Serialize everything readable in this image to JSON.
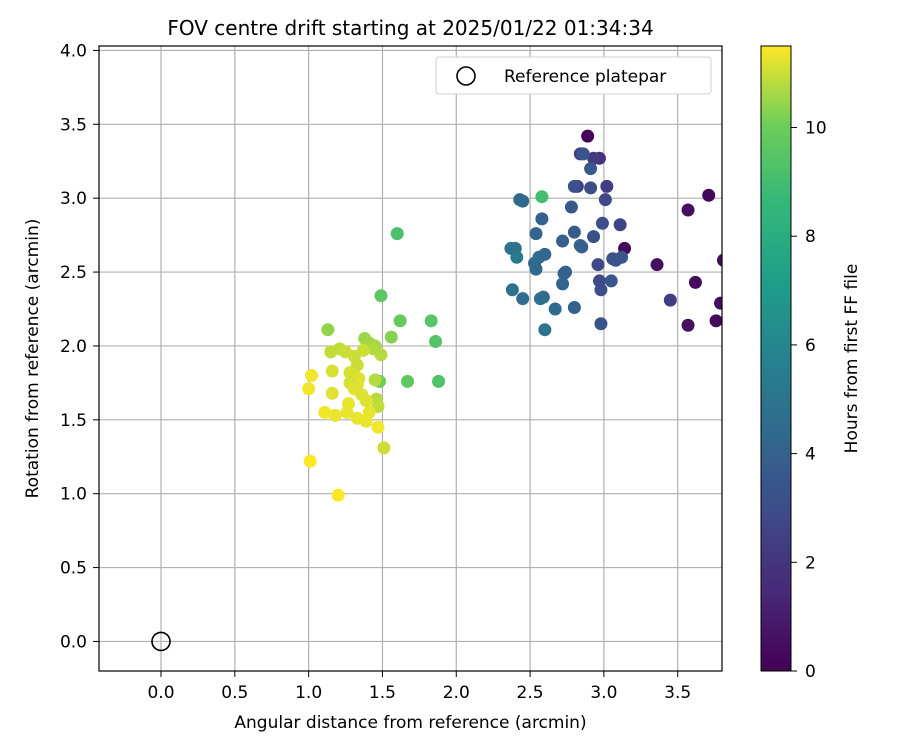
{
  "chart_data": {
    "type": "scatter",
    "title": "FOV centre drift starting at 2025/01/22 01:34:34",
    "xlabel": "Angular distance from reference (arcmin)",
    "ylabel": "Rotation from reference (arcmin)",
    "xlim": [
      -0.42,
      3.8
    ],
    "ylim": [
      -0.2,
      4.03
    ],
    "xticks": [
      "0.0",
      "0.5",
      "1.0",
      "1.5",
      "2.0",
      "2.5",
      "3.0",
      "3.5"
    ],
    "xtick_values": [
      0.0,
      0.5,
      1.0,
      1.5,
      2.0,
      2.5,
      3.0,
      3.5
    ],
    "yticks": [
      "0.0",
      "0.5",
      "1.0",
      "1.5",
      "2.0",
      "2.5",
      "3.0",
      "3.5",
      "4.0"
    ],
    "ytick_values": [
      0.0,
      0.5,
      1.0,
      1.5,
      2.0,
      2.5,
      3.0,
      3.5,
      4.0
    ],
    "grid": true,
    "legend": {
      "position": "top-right",
      "entries": [
        {
          "label": "Reference platepar",
          "marker": "open-circle"
        }
      ]
    },
    "reference_point": {
      "x": 0.0,
      "y": 0.0
    },
    "colorbar": {
      "label": "Hours from first FF file",
      "colormap": "viridis",
      "range": [
        0,
        11.5
      ],
      "ticks": [
        "0",
        "2",
        "4",
        "6",
        "8",
        "10"
      ],
      "tick_values": [
        0,
        2,
        4,
        6,
        8,
        10
      ]
    },
    "points": [
      {
        "x": 2.89,
        "y": 3.42,
        "h": 0.2
      },
      {
        "x": 3.71,
        "y": 3.02,
        "h": 0.3
      },
      {
        "x": 3.57,
        "y": 2.92,
        "h": 0.5
      },
      {
        "x": 3.14,
        "y": 2.66,
        "h": 0.3
      },
      {
        "x": 3.36,
        "y": 2.55,
        "h": 0.5
      },
      {
        "x": 3.81,
        "y": 2.58,
        "h": 0.4
      },
      {
        "x": 3.62,
        "y": 2.43,
        "h": 0.4
      },
      {
        "x": 3.79,
        "y": 2.29,
        "h": 0.5
      },
      {
        "x": 3.57,
        "y": 2.14,
        "h": 0.6
      },
      {
        "x": 3.76,
        "y": 2.17,
        "h": 0.3
      },
      {
        "x": 3.45,
        "y": 2.31,
        "h": 2.3
      },
      {
        "x": 2.97,
        "y": 3.27,
        "h": 1.8
      },
      {
        "x": 2.93,
        "y": 3.27,
        "h": 2.2
      },
      {
        "x": 2.84,
        "y": 3.3,
        "h": 2.5
      },
      {
        "x": 3.02,
        "y": 3.08,
        "h": 2.3
      },
      {
        "x": 2.82,
        "y": 3.08,
        "h": 2.4
      },
      {
        "x": 3.01,
        "y": 2.99,
        "h": 2.8
      },
      {
        "x": 2.91,
        "y": 3.07,
        "h": 3.0
      },
      {
        "x": 3.11,
        "y": 2.82,
        "h": 2.6
      },
      {
        "x": 2.99,
        "y": 2.83,
        "h": 3.1
      },
      {
        "x": 2.8,
        "y": 3.08,
        "h": 3.2
      },
      {
        "x": 2.86,
        "y": 3.3,
        "h": 3.4
      },
      {
        "x": 2.91,
        "y": 3.2,
        "h": 3.6
      },
      {
        "x": 2.93,
        "y": 2.74,
        "h": 3.2
      },
      {
        "x": 2.78,
        "y": 2.94,
        "h": 3.6
      },
      {
        "x": 2.96,
        "y": 2.55,
        "h": 2.8
      },
      {
        "x": 2.97,
        "y": 2.44,
        "h": 2.9
      },
      {
        "x": 2.98,
        "y": 2.38,
        "h": 3.0
      },
      {
        "x": 3.06,
        "y": 2.59,
        "h": 3.3
      },
      {
        "x": 3.05,
        "y": 2.44,
        "h": 3.5
      },
      {
        "x": 3.12,
        "y": 2.6,
        "h": 3.4
      },
      {
        "x": 3.08,
        "y": 2.58,
        "h": 3.3
      },
      {
        "x": 2.98,
        "y": 2.15,
        "h": 3.3
      },
      {
        "x": 2.85,
        "y": 2.67,
        "h": 3.7
      },
      {
        "x": 2.84,
        "y": 2.68,
        "h": 4.0
      },
      {
        "x": 2.72,
        "y": 2.71,
        "h": 3.9
      },
      {
        "x": 2.8,
        "y": 2.77,
        "h": 3.8
      },
      {
        "x": 2.58,
        "y": 2.86,
        "h": 4.0
      },
      {
        "x": 2.54,
        "y": 2.76,
        "h": 4.1
      },
      {
        "x": 2.43,
        "y": 2.99,
        "h": 4.3
      },
      {
        "x": 2.45,
        "y": 2.98,
        "h": 4.5
      },
      {
        "x": 2.73,
        "y": 2.49,
        "h": 4.2
      },
      {
        "x": 2.74,
        "y": 2.5,
        "h": 4.0
      },
      {
        "x": 2.72,
        "y": 2.42,
        "h": 4.1
      },
      {
        "x": 2.56,
        "y": 2.6,
        "h": 4.4
      },
      {
        "x": 2.6,
        "y": 2.62,
        "h": 4.2
      },
      {
        "x": 2.53,
        "y": 2.56,
        "h": 4.6
      },
      {
        "x": 2.54,
        "y": 2.52,
        "h": 4.3
      },
      {
        "x": 2.8,
        "y": 2.26,
        "h": 4.0
      },
      {
        "x": 2.67,
        "y": 2.25,
        "h": 4.4
      },
      {
        "x": 2.59,
        "y": 2.33,
        "h": 4.5
      },
      {
        "x": 2.57,
        "y": 2.32,
        "h": 4.7
      },
      {
        "x": 2.45,
        "y": 2.32,
        "h": 4.6
      },
      {
        "x": 2.38,
        "y": 2.38,
        "h": 4.8
      },
      {
        "x": 2.37,
        "y": 2.66,
        "h": 5.1
      },
      {
        "x": 2.4,
        "y": 2.66,
        "h": 5.0
      },
      {
        "x": 2.41,
        "y": 2.6,
        "h": 5.2
      },
      {
        "x": 2.6,
        "y": 2.11,
        "h": 5.0
      },
      {
        "x": 2.58,
        "y": 3.01,
        "h": 9.0
      },
      {
        "x": 1.6,
        "y": 2.76,
        "h": 9.2
      },
      {
        "x": 1.49,
        "y": 2.34,
        "h": 9.6
      },
      {
        "x": 1.62,
        "y": 2.17,
        "h": 9.8
      },
      {
        "x": 1.83,
        "y": 2.17,
        "h": 9.5
      },
      {
        "x": 1.86,
        "y": 2.03,
        "h": 9.4
      },
      {
        "x": 1.88,
        "y": 1.76,
        "h": 9.3
      },
      {
        "x": 1.67,
        "y": 1.76,
        "h": 9.7
      },
      {
        "x": 1.56,
        "y": 2.06,
        "h": 10.3
      },
      {
        "x": 1.13,
        "y": 2.11,
        "h": 10.4
      },
      {
        "x": 1.45,
        "y": 2.0,
        "h": 10.6
      },
      {
        "x": 1.48,
        "y": 1.76,
        "h": 10.0
      },
      {
        "x": 1.38,
        "y": 2.05,
        "h": 10.5
      },
      {
        "x": 1.41,
        "y": 2.02,
        "h": 10.6
      },
      {
        "x": 1.44,
        "y": 1.98,
        "h": 10.7
      },
      {
        "x": 1.49,
        "y": 1.94,
        "h": 10.8
      },
      {
        "x": 1.46,
        "y": 1.64,
        "h": 10.8
      },
      {
        "x": 1.47,
        "y": 1.59,
        "h": 10.9
      },
      {
        "x": 1.45,
        "y": 1.77,
        "h": 10.8
      },
      {
        "x": 1.21,
        "y": 1.98,
        "h": 10.9
      },
      {
        "x": 1.15,
        "y": 1.96,
        "h": 10.9
      },
      {
        "x": 1.25,
        "y": 1.96,
        "h": 11.0
      },
      {
        "x": 1.31,
        "y": 1.93,
        "h": 11.0
      },
      {
        "x": 1.33,
        "y": 1.87,
        "h": 11.0
      },
      {
        "x": 1.37,
        "y": 1.97,
        "h": 11.0
      },
      {
        "x": 1.16,
        "y": 1.83,
        "h": 11.1
      },
      {
        "x": 1.28,
        "y": 1.82,
        "h": 11.1
      },
      {
        "x": 1.31,
        "y": 1.8,
        "h": 11.1
      },
      {
        "x": 1.34,
        "y": 1.78,
        "h": 11.2
      },
      {
        "x": 1.33,
        "y": 1.74,
        "h": 11.2
      },
      {
        "x": 1.28,
        "y": 1.75,
        "h": 11.1
      },
      {
        "x": 1.31,
        "y": 1.71,
        "h": 11.2
      },
      {
        "x": 1.36,
        "y": 1.67,
        "h": 11.2
      },
      {
        "x": 1.16,
        "y": 1.68,
        "h": 11.2
      },
      {
        "x": 1.27,
        "y": 1.61,
        "h": 11.3
      },
      {
        "x": 1.39,
        "y": 1.63,
        "h": 11.2
      },
      {
        "x": 1.41,
        "y": 1.55,
        "h": 11.3
      },
      {
        "x": 1.26,
        "y": 1.55,
        "h": 11.3
      },
      {
        "x": 1.18,
        "y": 1.53,
        "h": 11.3
      },
      {
        "x": 1.33,
        "y": 1.51,
        "h": 11.3
      },
      {
        "x": 1.39,
        "y": 1.49,
        "h": 11.3
      },
      {
        "x": 1.47,
        "y": 1.45,
        "h": 11.4
      },
      {
        "x": 1.11,
        "y": 1.55,
        "h": 11.4
      },
      {
        "x": 1.02,
        "y": 1.8,
        "h": 11.4
      },
      {
        "x": 1.0,
        "y": 1.71,
        "h": 11.4
      },
      {
        "x": 1.51,
        "y": 1.31,
        "h": 11.0
      },
      {
        "x": 1.01,
        "y": 1.22,
        "h": 11.5
      },
      {
        "x": 1.2,
        "y": 0.99,
        "h": 11.5
      }
    ]
  }
}
